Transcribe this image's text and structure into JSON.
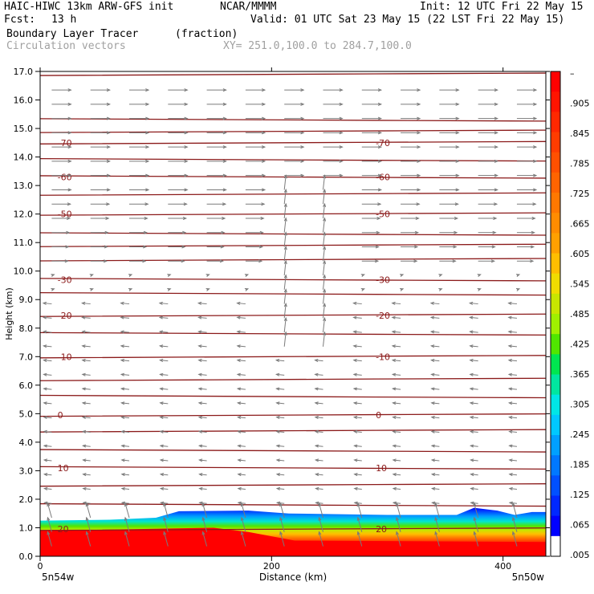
{
  "header": {
    "title": "HAIC-HIWC 13km ARW-GFS init",
    "org": "NCAR/MMMM",
    "init": "Init: 12 UTC Fri 22 May 15",
    "fcst_label": "Fcst:",
    "fcst_value": "13 h",
    "valid": "Valid: 01 UTC Sat 23 May 15 (22 LST Fri 22 May 15)",
    "field1": "Boundary Layer Tracer",
    "field1_units": "(fraction)",
    "field2": "Circulation vectors",
    "xy": "XY= 251.0,100.0 to 284.7,100.0"
  },
  "chart_data": {
    "type": "heatmap",
    "xlabel": "Distance (km)",
    "ylabel": "Height (km)",
    "xlim": [
      0,
      437
    ],
    "ylim": [
      0.0,
      17.0
    ],
    "x_ticks": [
      "0",
      "200",
      "400"
    ],
    "y_ticks": [
      "0.0",
      "1.0",
      "2.0",
      "3.0",
      "4.0",
      "5.0",
      "6.0",
      "7.0",
      "8.0",
      "9.0",
      "10.0",
      "11.0",
      "12.0",
      "13.0",
      "14.0",
      "15.0",
      "16.0",
      "17.0"
    ],
    "x_end_labels": {
      "left": "5n54w",
      "right": "5n50w"
    },
    "temperature_contours": {
      "color": "#8b1a1a",
      "labeled_levels": [
        {
          "label": "-70",
          "height_km": 14.5
        },
        {
          "label": "-60",
          "height_km": 13.3
        },
        {
          "label": "-50",
          "height_km": 12.0
        },
        {
          "label": "-30",
          "height_km": 9.7
        },
        {
          "label": "-20",
          "height_km": 8.45
        },
        {
          "label": "-10",
          "height_km": 7.0
        },
        {
          "label": "0",
          "height_km": 4.95
        },
        {
          "label": "10",
          "height_km": 3.1
        },
        {
          "label": "20",
          "height_km": 0.95
        }
      ],
      "unlabeled_levels_km": [
        16.9,
        15.3,
        14.9,
        13.9,
        12.7,
        11.3,
        10.9,
        10.4,
        9.2,
        7.8,
        6.2,
        5.6,
        4.4,
        3.7,
        2.5,
        1.8
      ]
    },
    "tracer_top_km": [
      {
        "x": 0,
        "z": 1.25
      },
      {
        "x": 60,
        "z": 1.28
      },
      {
        "x": 100,
        "z": 1.35
      },
      {
        "x": 120,
        "z": 1.58
      },
      {
        "x": 180,
        "z": 1.6
      },
      {
        "x": 215,
        "z": 1.5
      },
      {
        "x": 300,
        "z": 1.45
      },
      {
        "x": 360,
        "z": 1.45
      },
      {
        "x": 375,
        "z": 1.7
      },
      {
        "x": 395,
        "z": 1.6
      },
      {
        "x": 410,
        "z": 1.45
      },
      {
        "x": 425,
        "z": 1.55
      },
      {
        "x": 437,
        "z": 1.55
      }
    ],
    "red_core_top_km": [
      {
        "x": 0,
        "z": 0.9
      },
      {
        "x": 80,
        "z": 0.95
      },
      {
        "x": 150,
        "z": 1.0
      },
      {
        "x": 180,
        "z": 0.85
      },
      {
        "x": 220,
        "z": 0.55
      },
      {
        "x": 437,
        "z": 0.5
      }
    ],
    "colorbar": {
      "labels": [
        "–",
        ".905",
        ".845",
        ".785",
        ".725",
        ".665",
        ".605",
        ".545",
        ".485",
        ".425",
        ".365",
        ".305",
        ".245",
        ".185",
        ".125",
        ".065",
        ".005"
      ],
      "colors": [
        "#ff0000",
        "#ff1400",
        "#ff2800",
        "#ff3c00",
        "#ff5000",
        "#ff6400",
        "#ff7800",
        "#ff8c00",
        "#ffa000",
        "#ffbe00",
        "#f0dc00",
        "#c8e600",
        "#a0f000",
        "#50e600",
        "#00e650",
        "#00e6a0",
        "#00e6e6",
        "#00c8ff",
        "#00a0ff",
        "#0078ff",
        "#0050ff",
        "#0028ff",
        "#0000ff",
        "#ffffff"
      ]
    },
    "circulation": {
      "upper_level_flow": "eastward (left to right) above ~10 km",
      "mid_level_flow": "westward (right to left) between ~2 and 9 km",
      "updraft_column_km": 220
    }
  }
}
